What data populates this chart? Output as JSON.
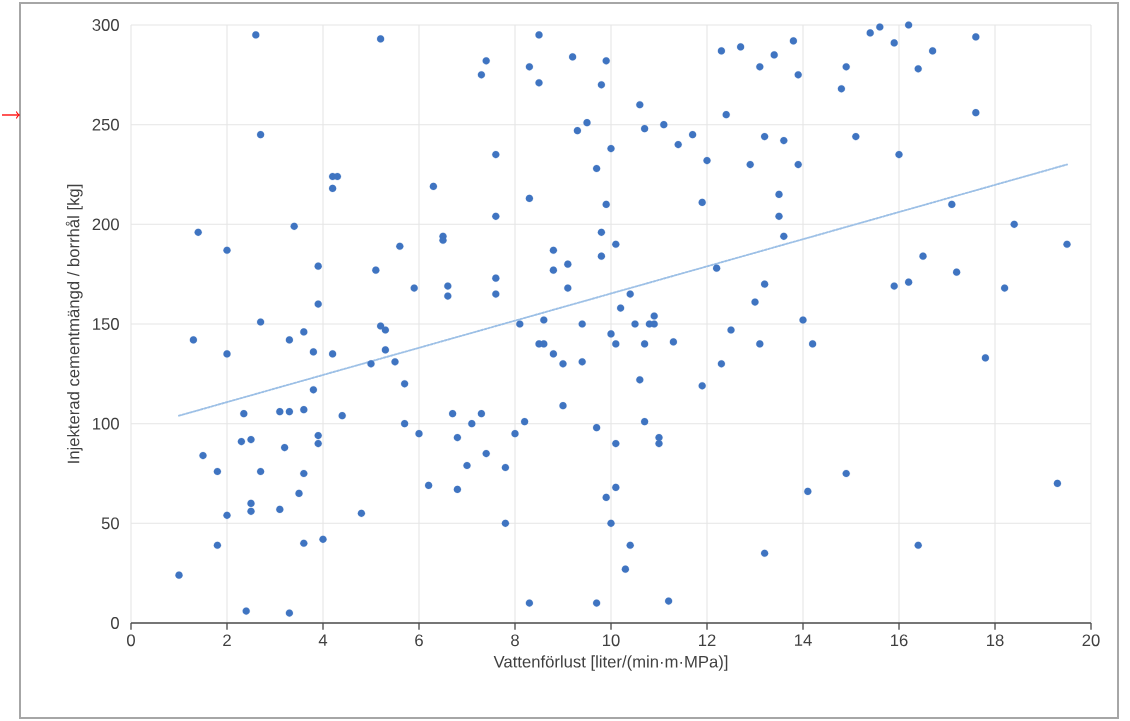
{
  "chart_data": {
    "type": "scatter",
    "xlabel": "Vattenförlust [liter/(min·m·MPa)]",
    "ylabel": "Injekterad cementmängd / borrhål [kg]",
    "xlim": [
      0,
      20
    ],
    "ylim": [
      0,
      300
    ],
    "xticks": [
      0,
      2,
      4,
      6,
      8,
      10,
      12,
      14,
      16,
      18,
      20
    ],
    "yticks": [
      0,
      50,
      100,
      150,
      200,
      250,
      300
    ],
    "grid": true,
    "series": [
      {
        "color": "#3f74c1",
        "x": [
          1.0,
          1.3,
          1.4,
          1.5,
          1.8,
          1.8,
          2.0,
          2.0,
          2.0,
          2.3,
          2.35,
          2.4,
          2.5,
          2.5,
          2.5,
          2.6,
          2.7,
          2.7,
          2.7,
          3.1,
          3.1,
          3.2,
          3.3,
          3.3,
          3.3,
          3.4,
          3.5,
          3.6,
          3.6,
          3.6,
          3.6,
          3.8,
          3.8,
          3.9,
          3.9,
          3.9,
          3.9,
          4.0,
          4.2,
          4.2,
          4.3,
          4.2,
          4.4,
          4.8,
          5.0,
          5.1,
          5.2,
          5.2,
          5.3,
          5.3,
          5.5,
          5.6,
          5.7,
          5.7,
          5.9,
          6.0,
          6.2,
          6.3,
          6.5,
          6.5,
          6.6,
          6.6,
          6.7,
          6.8,
          6.8,
          7.0,
          7.1,
          7.3,
          7.3,
          7.4,
          7.4,
          7.6,
          7.6,
          7.6,
          7.6,
          7.8,
          7.8,
          8.0,
          8.1,
          8.2,
          8.3,
          8.3,
          8.3,
          8.5,
          8.5,
          8.5,
          8.6,
          8.6,
          8.8,
          8.8,
          8.8,
          9.0,
          9.0,
          9.1,
          9.1,
          9.2,
          9.3,
          9.4,
          9.4,
          9.5,
          9.7,
          9.7,
          9.7,
          9.8,
          9.8,
          9.8,
          9.9,
          9.9,
          9.9,
          10.0,
          10.0,
          10.0,
          10.1,
          10.1,
          10.1,
          10.1,
          10.2,
          10.3,
          10.4,
          10.4,
          10.5,
          10.6,
          10.6,
          10.7,
          10.7,
          10.7,
          10.8,
          10.9,
          10.9,
          11.0,
          11.0,
          11.1,
          11.2,
          11.3,
          11.4,
          11.7,
          11.9,
          11.9,
          12.0,
          12.2,
          12.3,
          12.3,
          12.4,
          12.5,
          12.7,
          12.9,
          13.0,
          13.1,
          13.1,
          13.2,
          13.2,
          13.2,
          13.4,
          13.5,
          13.5,
          13.6,
          13.6,
          13.8,
          13.9,
          13.9,
          14.0,
          14.1,
          14.2,
          14.8,
          14.9,
          14.9,
          15.1,
          15.4,
          15.6,
          15.9,
          15.9,
          16.0,
          16.2,
          16.2,
          16.4,
          16.4,
          16.5,
          16.7,
          17.1,
          17.2,
          17.6,
          17.6,
          17.8,
          18.2,
          18.4,
          19.3,
          19.5
        ],
        "values": [
          24,
          142,
          196,
          84,
          76,
          39,
          187,
          135,
          54,
          91,
          105,
          6,
          92,
          60,
          56,
          295,
          245,
          151,
          76,
          106,
          57,
          88,
          142,
          106,
          5,
          199,
          65,
          146,
          107,
          75,
          40,
          136,
          117,
          179,
          160,
          94,
          90,
          42,
          224,
          218,
          224,
          135,
          104,
          55,
          130,
          177,
          293,
          149,
          147,
          137,
          131,
          189,
          120,
          100,
          168,
          95,
          69,
          219,
          194,
          192,
          169,
          164,
          105,
          93,
          67,
          79,
          100,
          275,
          105,
          282,
          85,
          235,
          204,
          173,
          165,
          78,
          50,
          95,
          150,
          101,
          279,
          213,
          10,
          295,
          271,
          140,
          152,
          140,
          187,
          177,
          135,
          130,
          109,
          180,
          168,
          284,
          247,
          150,
          131,
          251,
          228,
          98,
          10,
          270,
          196,
          184,
          282,
          210,
          63,
          238,
          145,
          50,
          190,
          140,
          90,
          68,
          158,
          27,
          165,
          39,
          150,
          260,
          122,
          248,
          140,
          101,
          150,
          154,
          150,
          93,
          90,
          250,
          11,
          141,
          240,
          245,
          211,
          119,
          232,
          178,
          287,
          130,
          255,
          147,
          289,
          230,
          161,
          279,
          140,
          244,
          170,
          35,
          285,
          215,
          204,
          242,
          194,
          292,
          275,
          230,
          152,
          66,
          140,
          268,
          279,
          75,
          244,
          296,
          299,
          291,
          169,
          235,
          300,
          171,
          278,
          39,
          184,
          287,
          210,
          176,
          294,
          256,
          133,
          168,
          200,
          70,
          190
        ]
      },
      {
        "type": "line",
        "color": "#9dc0e6",
        "line_style": "dotted",
        "marker": "none",
        "x": [
          1.0,
          19.5
        ],
        "values": [
          104,
          230
        ]
      }
    ]
  }
}
